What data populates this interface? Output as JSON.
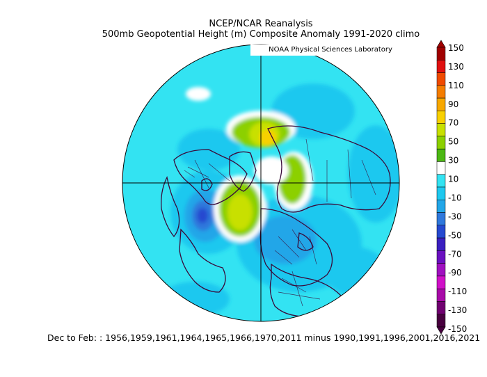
{
  "header": {
    "title": "NCEP/NCAR Reanalysis",
    "subtitle": "500mb Geopotential Height (m) Composite Anomaly 1991-2020 climo"
  },
  "credit": "NOAA Physical Sciences Laboratory",
  "colorbar": {
    "labels": [
      "150",
      "130",
      "110",
      "90",
      "70",
      "50",
      "30",
      "10",
      "-10",
      "-30",
      "-50",
      "-70",
      "-90",
      "-110",
      "-130",
      "-150"
    ],
    "colors": [
      "#a00000",
      "#e01010",
      "#f04a00",
      "#f57d00",
      "#f8a800",
      "#f8d000",
      "#c8e000",
      "#8cd000",
      "#4cb814",
      "#ffffff",
      "#33e3f2",
      "#1ec8ef",
      "#22a6e8",
      "#2f78dc",
      "#2549d0",
      "#3a1fc0",
      "#6a10c0",
      "#a010c0",
      "#d010c8",
      "#a80aa8",
      "#700070",
      "#48003f"
    ]
  },
  "footer": "Dec to Feb: : 1956,1959,1961,1964,1965,1966,1970,2011 minus 1990,1991,1996,2001,2016,2021"
}
